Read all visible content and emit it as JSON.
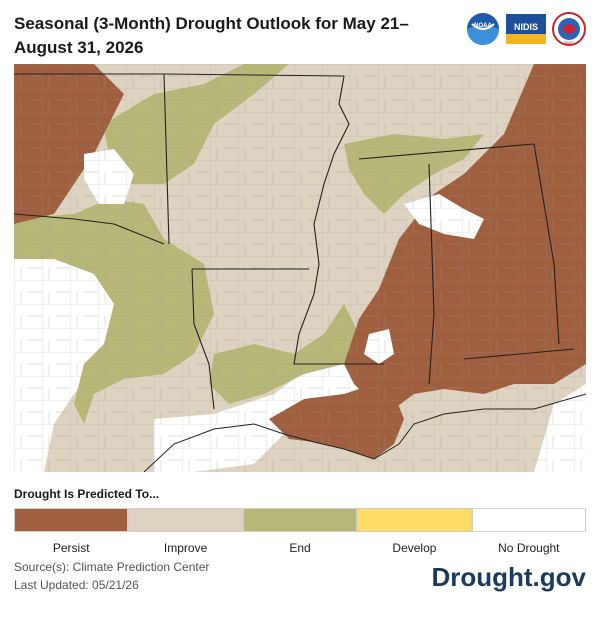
{
  "title": "Seasonal (3-Month) Drought Outlook for May 21–August 31, 2026",
  "logos": [
    {
      "name": "noaa-logo",
      "text": "NOAA"
    },
    {
      "name": "nidis-logo",
      "text": "NIDIS"
    },
    {
      "name": "nws-logo",
      "text": "NWS"
    }
  ],
  "legend": {
    "title": "Drought Is Predicted To...",
    "items": [
      {
        "label": "Persist",
        "color": "#a0603f"
      },
      {
        "label": "Improve",
        "color": "#ddd3c0"
      },
      {
        "label": "End",
        "color": "#b7b878"
      },
      {
        "label": "Develop",
        "color": "#fddd65"
      },
      {
        "label": "No Drought",
        "color": "#ffffff"
      }
    ]
  },
  "source": "Source(s): Climate Prediction Center",
  "updated": "Last Updated: 05/21/26",
  "brand": "Drought.gov",
  "map_colors": {
    "persist": "#a0603f",
    "improve": "#ddd3c0",
    "end": "#b7b878",
    "no_drought": "#ffffff",
    "border": "#222222",
    "county": "#9a9a9a",
    "water": "#ffffff"
  }
}
